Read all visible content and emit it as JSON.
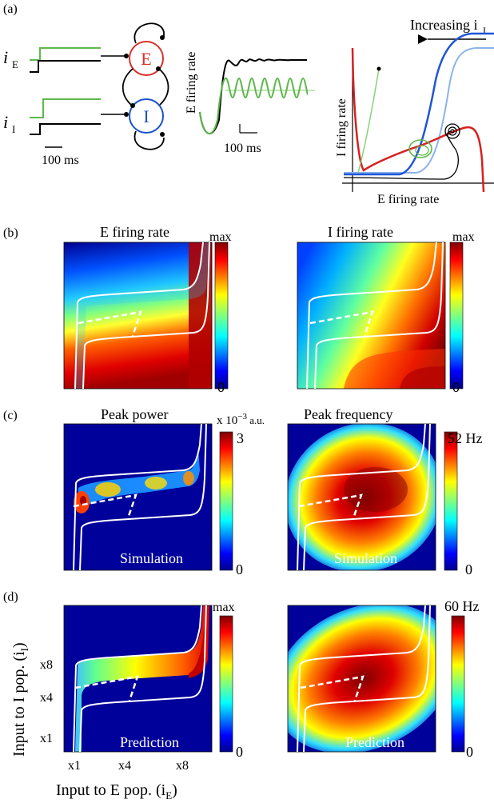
{
  "panel_a": {
    "label": "(a)",
    "input_e": "i",
    "input_e_sub": "E",
    "input_i": "i",
    "input_i_sub": "I",
    "scale_left": "100 ms",
    "node_e": "E",
    "node_i": "I",
    "trace_ylabel": "E firing rate",
    "scale_mid": "100 ms",
    "phase_title": "Increasing i",
    "phase_title_sub": "I",
    "phase_ylabel": "I firing rate",
    "phase_xlabel": "E firing rate",
    "colors": {
      "e_node": "#d9302a",
      "i_node": "#1a52c8",
      "stim_green": "#5cb84a",
      "nullcline_blue": "#1f55d6",
      "nullcline_light": "#8cb3ea",
      "nullcline_red": "#d62020"
    }
  },
  "panel_b": {
    "label": "(b)",
    "left_title": "E firing rate",
    "right_title": "I firing rate",
    "left_cbar_max": "max",
    "left_cbar_min": "0",
    "right_cbar_max": "max",
    "right_cbar_min": "0"
  },
  "panel_c": {
    "label": "(c)",
    "left_title": "Peak power",
    "left_cbar_unit": "x 10",
    "left_cbar_unit_exp": "−3",
    "left_cbar_unit_tail": " a.u.",
    "left_cbar_max": "3",
    "left_cbar_min": "0",
    "left_tag": "Simulation",
    "right_title": "Peak frequency",
    "right_cbar_max": "52 Hz",
    "right_cbar_min": "0",
    "right_tag": "Simulation"
  },
  "panel_d": {
    "label": "(d)",
    "left_cbar_max": "max",
    "left_cbar_min": "0",
    "left_tag": "Prediction",
    "right_cbar_max": "60 Hz",
    "right_cbar_min": "0",
    "right_tag": "Prediction",
    "y_ticks": [
      "x8",
      "x4",
      "x1"
    ],
    "x_ticks": [
      "x1",
      "x4",
      "x8"
    ],
    "ylabel": "Input to I pop. (i",
    "ylabel_sub": "I",
    "ylabel_tail": ")",
    "xlabel": "Input to E pop. (i",
    "xlabel_sub": "E",
    "xlabel_tail": ")"
  },
  "colormap": "jet"
}
